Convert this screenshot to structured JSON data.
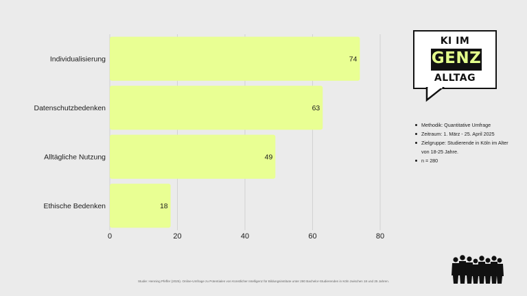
{
  "chart_data": {
    "type": "bar",
    "orientation": "horizontal",
    "categories": [
      "Individualisierung",
      "Datenschutzbedenken",
      "Alltägliche Nutzung",
      "Ethische Bedenken"
    ],
    "values": [
      74,
      63,
      49,
      18
    ],
    "xticks": [
      0,
      20,
      40,
      60,
      80
    ],
    "xlim": [
      0,
      80
    ],
    "grid": true,
    "bar_color": "#e9ff93"
  },
  "logo": {
    "top": "KI IM",
    "middle": "GENZ",
    "bottom": "ALLTAG"
  },
  "notes": [
    "Methodik: Quantitative Umfrage",
    "Zeitraum: 1. März - 25. April 2025",
    "Zielgruppe: Studierende in Köln im Alter von 18-25 Jahre.",
    "n = 280"
  ],
  "source": "Studie: Henning Pfeffer (2025). Online-Umfrage zu Potentialen von Künstlicher Intelligenz für Bildungsinstitute unter 280 Bachelor-Studierenden in Köln zwischen 18 und 25 Jahren.",
  "icons": {
    "people": "crowd-silhouette-icon",
    "logo_bubble": "speech-bubble-icon"
  }
}
